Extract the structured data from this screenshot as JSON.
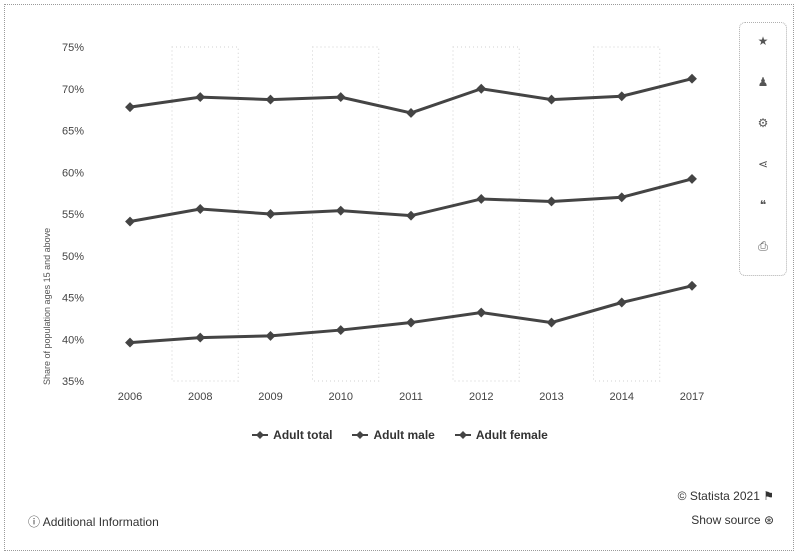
{
  "chart_data": {
    "type": "line",
    "categories": [
      "2006",
      "2008",
      "2009",
      "2010",
      "2011",
      "2012",
      "2013",
      "2014",
      "2017"
    ],
    "series": [
      {
        "name": "Adult total",
        "values": [
          67.8,
          69.0,
          68.7,
          69.0,
          67.1,
          70.0,
          68.7,
          69.1,
          71.2
        ]
      },
      {
        "name": "Adult male",
        "values": [
          54.1,
          55.6,
          55.0,
          55.4,
          54.8,
          56.8,
          56.5,
          57.0,
          59.2
        ]
      },
      {
        "name": "Adult female",
        "values": [
          39.6,
          40.2,
          40.4,
          41.1,
          42.0,
          43.2,
          42.0,
          44.4,
          46.4
        ]
      }
    ],
    "ylim": [
      35,
      75
    ],
    "yticks": [
      "35%",
      "40%",
      "45%",
      "50%",
      "55%",
      "60%",
      "65%",
      "70%",
      "75%"
    ],
    "ylabel": "Share of population ages 15 and above",
    "xlabel": "",
    "grid": true,
    "legend_position": "bottom",
    "colors": {
      "line": "#444444"
    }
  },
  "footer": {
    "copyright": "© Statista 2021",
    "additional_info": "Additional Information",
    "show_source": "Show source"
  },
  "toolbar": {
    "icons": [
      "star-icon",
      "bell-icon",
      "gear-icon",
      "share-icon",
      "quote-icon",
      "print-icon"
    ]
  }
}
